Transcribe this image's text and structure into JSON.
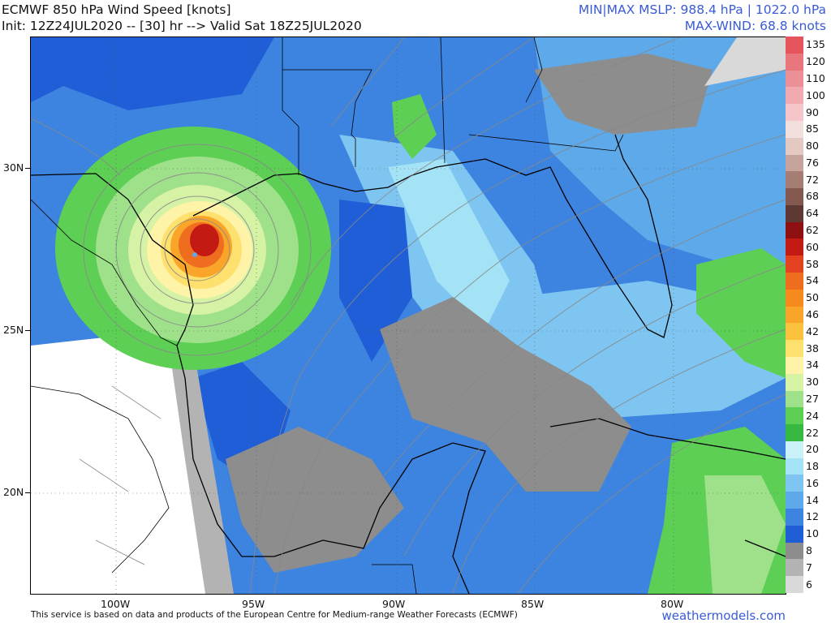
{
  "header": {
    "title": "ECMWF 850 hPa Wind Speed [knots]",
    "init": "Init: 12Z24JUL2020 -- [30] hr --> Valid Sat 18Z25JUL2020",
    "mslp": "MIN|MAX MSLP: 988.4 hPa | 1022.0 hPa",
    "maxwind": "MAX-WIND: 68.8 knots"
  },
  "lat_labels": [
    "30N",
    "25N",
    "20N"
  ],
  "lon_labels": [
    "100W",
    "95W",
    "90W",
    "85W",
    "80W"
  ],
  "colorbar": {
    "levels": [
      "135",
      "120",
      "110",
      "100",
      "90",
      "85",
      "80",
      "76",
      "72",
      "68",
      "64",
      "62",
      "60",
      "58",
      "54",
      "50",
      "46",
      "42",
      "38",
      "34",
      "30",
      "27",
      "24",
      "22",
      "20",
      "18",
      "16",
      "14",
      "12",
      "10",
      "8",
      "7",
      "6"
    ],
    "colors": [
      "#e6555c",
      "#e8767c",
      "#ec9097",
      "#f1aab0",
      "#f5c6c9",
      "#f2dfde",
      "#e3c9c2",
      "#c7a49b",
      "#a67d73",
      "#83584f",
      "#5e3934",
      "#8e1010",
      "#c41a14",
      "#e3411f",
      "#ef6d1e",
      "#f68a1c",
      "#f9a52a",
      "#fbc23f",
      "#fde06d",
      "#fff3a8",
      "#d6f2a4",
      "#9fe08a",
      "#5ecf55",
      "#37b840",
      "#c9f2f8",
      "#a4e2f5",
      "#7ec6f1",
      "#5ea9ea",
      "#3c84e0",
      "#1f5ed6",
      "#8d8d8d",
      "#b3b3b3",
      "#d9d9d9"
    ]
  },
  "footer": {
    "credit": "This service is based on data and products of the European Centre for Medium-range Weather Forecasts (ECMWF)",
    "brand": "weathermodels.com"
  }
}
